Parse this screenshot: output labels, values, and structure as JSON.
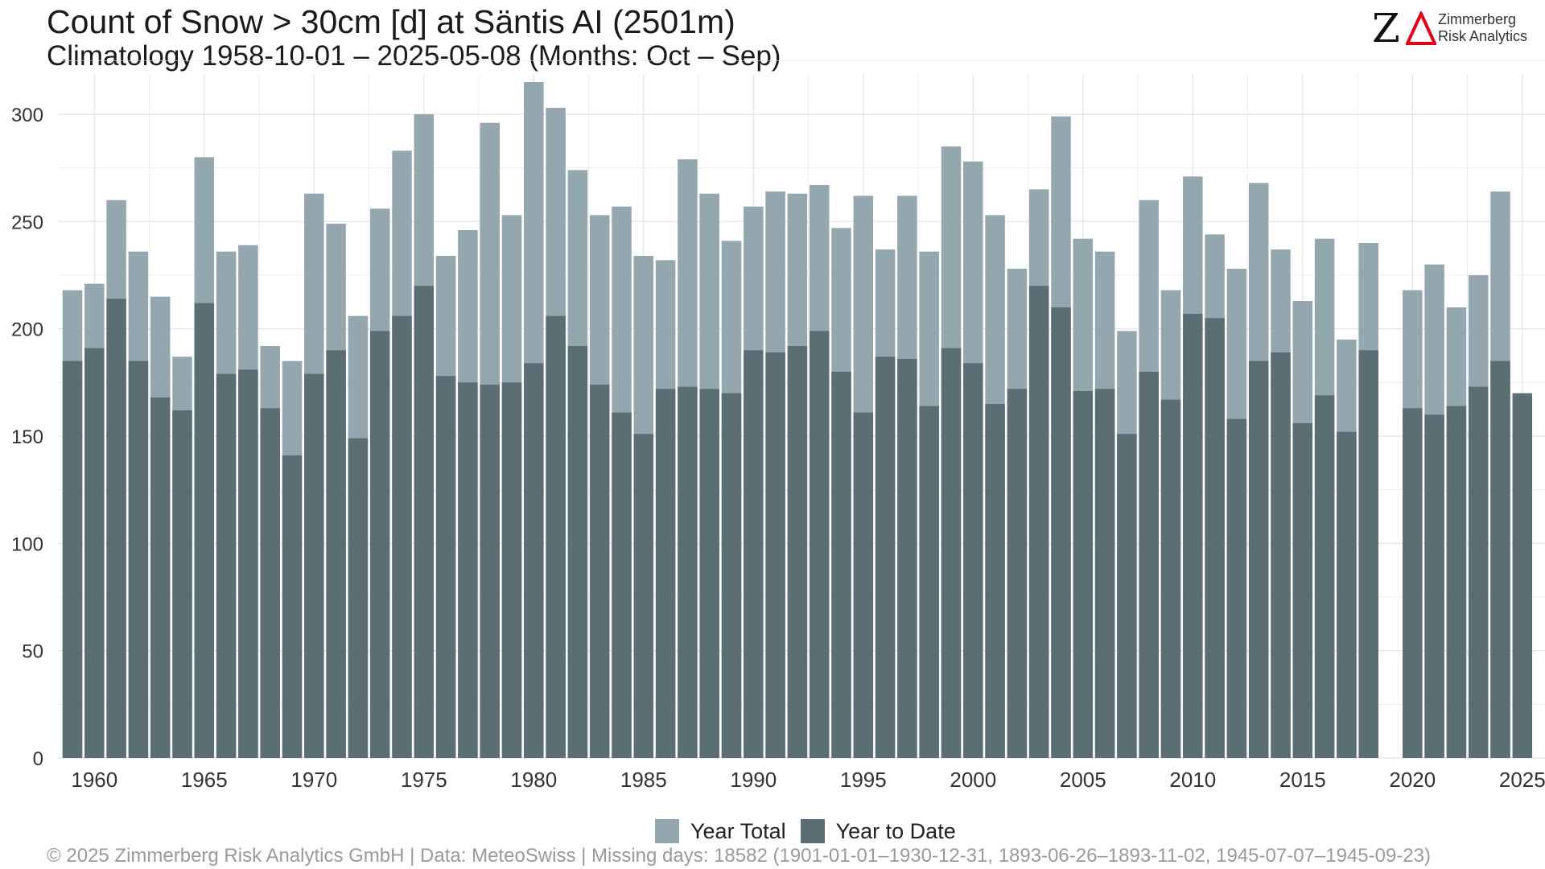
{
  "header": {
    "title": "Count of Snow > 30cm [d] at Säntis  AI (2501m)",
    "subtitle": "Climatology 1958-10-01 – 2025-05-08 (Months: Oct – Sep)"
  },
  "logo": {
    "line1": "Zimmerberg",
    "line2": "Risk Analytics",
    "mark_color": "#111111",
    "accent_color": "#e2001a"
  },
  "footer": {
    "text": "©  2025 Zimmerberg Risk Analytics GmbH | Data: MeteoSwiss | Missing days: 18582 (1901-01-01–1930-12-31, 1893-06-26–1893-11-02, 1945-07-07–1945-09-23)"
  },
  "chart_data": {
    "type": "bar",
    "x_label_ticks": [
      1960,
      1965,
      1970,
      1975,
      1980,
      1985,
      1990,
      1995,
      2000,
      2005,
      2010,
      2015,
      2020,
      2025
    ],
    "ylim": [
      0,
      325
    ],
    "yticks": [
      0,
      50,
      100,
      150,
      200,
      250,
      300
    ],
    "grid": true,
    "legend_position": "bottom",
    "colors": {
      "year_total": "#95a7ae",
      "year_to_date": "#5a6e74",
      "grid": "#e3e3e3"
    },
    "x": [
      1959,
      1960,
      1961,
      1962,
      1963,
      1964,
      1965,
      1966,
      1967,
      1968,
      1969,
      1970,
      1971,
      1972,
      1973,
      1974,
      1975,
      1976,
      1977,
      1978,
      1979,
      1980,
      1981,
      1982,
      1983,
      1984,
      1985,
      1986,
      1987,
      1988,
      1989,
      1990,
      1991,
      1992,
      1993,
      1994,
      1995,
      1996,
      1997,
      1998,
      1999,
      2000,
      2001,
      2002,
      2003,
      2004,
      2005,
      2006,
      2007,
      2008,
      2009,
      2010,
      2011,
      2012,
      2013,
      2014,
      2015,
      2016,
      2017,
      2018,
      2019,
      2020,
      2021,
      2022,
      2023,
      2024,
      2025
    ],
    "series": [
      {
        "name": "Year Total",
        "values": [
          218,
          221,
          260,
          236,
          215,
          187,
          280,
          236,
          239,
          192,
          185,
          263,
          249,
          206,
          256,
          283,
          300,
          234,
          246,
          296,
          253,
          315,
          303,
          274,
          253,
          257,
          234,
          232,
          279,
          263,
          241,
          257,
          264,
          263,
          267,
          247,
          262,
          237,
          262,
          236,
          285,
          278,
          253,
          228,
          265,
          299,
          242,
          236,
          199,
          260,
          218,
          271,
          244,
          228,
          268,
          237,
          213,
          242,
          195,
          240,
          null,
          218,
          230,
          210,
          225,
          264,
          null
        ]
      },
      {
        "name": "Year to Date",
        "values": [
          185,
          191,
          214,
          185,
          168,
          162,
          212,
          179,
          181,
          163,
          141,
          179,
          190,
          149,
          199,
          206,
          220,
          178,
          175,
          174,
          175,
          184,
          206,
          192,
          174,
          161,
          151,
          172,
          173,
          172,
          170,
          190,
          189,
          192,
          199,
          180,
          161,
          187,
          186,
          164,
          191,
          184,
          165,
          172,
          220,
          210,
          171,
          172,
          151,
          180,
          167,
          207,
          205,
          158,
          185,
          189,
          156,
          169,
          152,
          190,
          null,
          163,
          160,
          164,
          173,
          185,
          170
        ]
      }
    ]
  }
}
